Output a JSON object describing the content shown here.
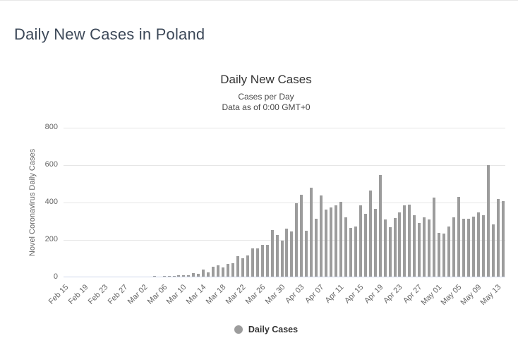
{
  "page": {
    "title": "Daily New Cases in Poland"
  },
  "chart": {
    "title": "Daily New Cases",
    "subtitle_line1": "Cases per Day",
    "subtitle_line2": "Data as of 0:00 GMT+0",
    "y_axis_title": "Novel Coronavirus Daily Cases",
    "legend_label": "Daily Cases",
    "colors": {
      "bar": "#9c9c9c",
      "gridline": "#e6e6e6",
      "axis_line": "#ccd6eb",
      "axis_text": "#666666",
      "title_text": "#333333",
      "page_title_text": "#3c4858"
    }
  },
  "chart_data": {
    "type": "bar",
    "title": "Daily New Cases",
    "subtitle": "Cases per Day / Data as of 0:00 GMT+0",
    "xlabel": "",
    "ylabel": "Novel Coronavirus Daily Cases",
    "ylim": [
      0,
      800
    ],
    "y_ticks": [
      0,
      200,
      400,
      600,
      800
    ],
    "grid": true,
    "legend": [
      "Daily Cases"
    ],
    "legend_position": "bottom",
    "x_tick_interval": 4,
    "x_tick_labels": [
      "Feb 15",
      "Feb 19",
      "Feb 23",
      "Feb 27",
      "Mar 02",
      "Mar 06",
      "Mar 10",
      "Mar 14",
      "Mar 18",
      "Mar 22",
      "Mar 26",
      "Mar 30",
      "Apr 03",
      "Apr 07",
      "Apr 11",
      "Apr 15",
      "Apr 19",
      "Apr 23",
      "Apr 27",
      "May 01",
      "May 05",
      "May 09",
      "May 13"
    ],
    "categories": [
      "Feb 15",
      "Feb 16",
      "Feb 17",
      "Feb 18",
      "Feb 19",
      "Feb 20",
      "Feb 21",
      "Feb 22",
      "Feb 23",
      "Feb 24",
      "Feb 25",
      "Feb 26",
      "Feb 27",
      "Feb 28",
      "Feb 29",
      "Mar 01",
      "Mar 02",
      "Mar 03",
      "Mar 04",
      "Mar 05",
      "Mar 06",
      "Mar 07",
      "Mar 08",
      "Mar 09",
      "Mar 10",
      "Mar 11",
      "Mar 12",
      "Mar 13",
      "Mar 14",
      "Mar 15",
      "Mar 16",
      "Mar 17",
      "Mar 18",
      "Mar 19",
      "Mar 20",
      "Mar 21",
      "Mar 22",
      "Mar 23",
      "Mar 24",
      "Mar 25",
      "Mar 26",
      "Mar 27",
      "Mar 28",
      "Mar 29",
      "Mar 30",
      "Mar 31",
      "Apr 01",
      "Apr 02",
      "Apr 03",
      "Apr 04",
      "Apr 05",
      "Apr 06",
      "Apr 07",
      "Apr 08",
      "Apr 09",
      "Apr 10",
      "Apr 11",
      "Apr 12",
      "Apr 13",
      "Apr 14",
      "Apr 15",
      "Apr 16",
      "Apr 17",
      "Apr 18",
      "Apr 19",
      "Apr 20",
      "Apr 21",
      "Apr 22",
      "Apr 23",
      "Apr 24",
      "Apr 25",
      "Apr 26",
      "Apr 27",
      "Apr 28",
      "Apr 29",
      "Apr 30",
      "May 01",
      "May 02",
      "May 03",
      "May 04",
      "May 05",
      "May 06",
      "May 07",
      "May 08",
      "May 09",
      "May 10",
      "May 11",
      "May 12",
      "May 13",
      "May 14"
    ],
    "values": [
      0,
      0,
      0,
      0,
      0,
      0,
      0,
      0,
      0,
      0,
      0,
      0,
      0,
      0,
      0,
      0,
      0,
      0,
      1,
      0,
      4,
      1,
      5,
      6,
      8,
      9,
      20,
      17,
      36,
      21,
      52,
      61,
      49,
      68,
      70,
      111,
      98,
      115,
      152,
      150,
      170,
      168,
      249,
      224,
      193,
      256,
      243,
      392,
      437,
      244,
      475,
      311,
      435,
      357,
      370,
      380,
      401,
      318,
      260,
      268,
      380,
      336,
      461,
      363,
      545,
      306,
      263,
      313,
      342,
      381,
      386,
      329,
      285,
      316,
      307,
      424,
      233,
      229,
      269,
      316,
      425,
      311,
      309,
      322,
      345,
      330,
      595,
      280,
      414,
      403
    ]
  }
}
